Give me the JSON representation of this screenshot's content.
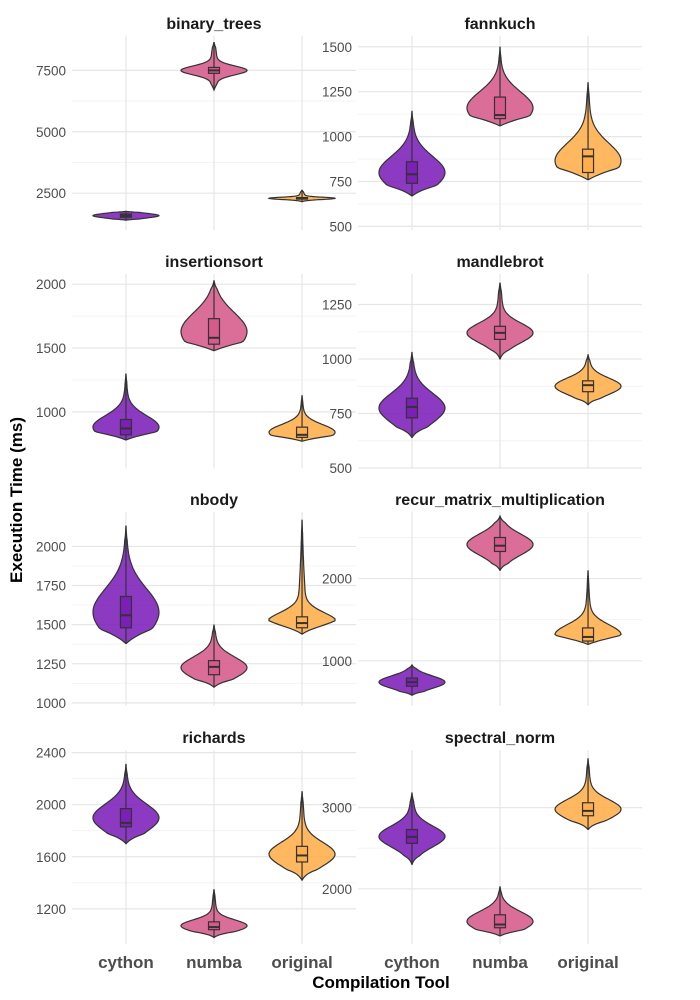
{
  "chart_data": {
    "type": "violin",
    "xlabel": "Compilation Tool",
    "ylabel": "Execution Time (ms)",
    "categories": [
      "cython",
      "numba",
      "original"
    ],
    "colors": {
      "cython": "#7b1fb8",
      "numba": "#d65a8a",
      "original": "#ffae4a"
    },
    "panels": [
      {
        "title": "binary_trees",
        "yticks": [
          2500,
          5000,
          7500
        ],
        "yminor": [
          3750,
          6250
        ],
        "ylim": [
          1000,
          8900
        ],
        "groups": [
          {
            "category": "cython",
            "min": 1400,
            "q1": 1520,
            "median": 1580,
            "q3": 1650,
            "max": 1760
          },
          {
            "category": "numba",
            "min": 6700,
            "q1": 7380,
            "median": 7500,
            "q3": 7620,
            "max": 8650
          },
          {
            "category": "original",
            "min": 2150,
            "q1": 2260,
            "median": 2290,
            "q3": 2320,
            "max": 2620
          }
        ]
      },
      {
        "title": "fannkuch",
        "yticks": [
          500,
          750,
          1000,
          1250,
          1500
        ],
        "yminor": [
          625,
          875,
          1125,
          1375
        ],
        "ylim": [
          480,
          1560
        ],
        "groups": [
          {
            "category": "cython",
            "min": 670,
            "q1": 740,
            "median": 790,
            "q3": 860,
            "max": 1140
          },
          {
            "category": "numba",
            "min": 1060,
            "q1": 1100,
            "median": 1120,
            "q3": 1220,
            "max": 1500
          },
          {
            "category": "original",
            "min": 760,
            "q1": 800,
            "median": 890,
            "q3": 930,
            "max": 1300
          }
        ]
      },
      {
        "title": "insertionsort",
        "yticks": [
          1000,
          1500,
          2000
        ],
        "yminor": [
          1250,
          1750
        ],
        "ylim": [
          560,
          2080
        ],
        "groups": [
          {
            "category": "cython",
            "min": 780,
            "q1": 820,
            "median": 870,
            "q3": 940,
            "max": 1300
          },
          {
            "category": "numba",
            "min": 1480,
            "q1": 1530,
            "median": 1580,
            "q3": 1730,
            "max": 2030
          },
          {
            "category": "original",
            "min": 770,
            "q1": 800,
            "median": 820,
            "q3": 880,
            "max": 1130
          }
        ]
      },
      {
        "title": "mandlebrot",
        "yticks": [
          500,
          750,
          1000,
          1250
        ],
        "yminor": [
          625,
          875,
          1125
        ],
        "ylim": [
          500,
          1390
        ],
        "groups": [
          {
            "category": "cython",
            "min": 640,
            "q1": 730,
            "median": 780,
            "q3": 820,
            "max": 1030
          },
          {
            "category": "numba",
            "min": 1000,
            "q1": 1090,
            "median": 1120,
            "q3": 1150,
            "max": 1350
          },
          {
            "category": "original",
            "min": 790,
            "q1": 850,
            "median": 880,
            "q3": 900,
            "max": 1020
          }
        ]
      },
      {
        "title": "nbody",
        "yticks": [
          1000,
          1250,
          1500,
          1750,
          2000
        ],
        "yminor": [
          1125,
          1375,
          1625,
          1875
        ],
        "ylim": [
          980,
          2220
        ],
        "groups": [
          {
            "category": "cython",
            "min": 1380,
            "q1": 1480,
            "median": 1560,
            "q3": 1680,
            "max": 2130
          },
          {
            "category": "numba",
            "min": 1100,
            "q1": 1180,
            "median": 1230,
            "q3": 1270,
            "max": 1500
          },
          {
            "category": "original",
            "min": 1440,
            "q1": 1480,
            "median": 1510,
            "q3": 1550,
            "max": 2170
          }
        ]
      },
      {
        "title": "recur_matrix_multiplication",
        "yticks": [
          1000,
          2000
        ],
        "yminor": [
          1500,
          2500
        ],
        "ylim": [
          450,
          2810
        ],
        "groups": [
          {
            "category": "cython",
            "min": 580,
            "q1": 690,
            "median": 740,
            "q3": 790,
            "max": 950
          },
          {
            "category": "numba",
            "min": 2100,
            "q1": 2330,
            "median": 2400,
            "q3": 2500,
            "max": 2760
          },
          {
            "category": "original",
            "min": 1200,
            "q1": 1240,
            "median": 1290,
            "q3": 1400,
            "max": 2100
          }
        ]
      },
      {
        "title": "richards",
        "yticks": [
          1200,
          1600,
          2000,
          2400
        ],
        "yminor": [
          1400,
          1800,
          2200
        ],
        "ylim": [
          930,
          2420
        ],
        "groups": [
          {
            "category": "cython",
            "min": 1700,
            "q1": 1830,
            "median": 1860,
            "q3": 1970,
            "max": 2310
          },
          {
            "category": "numba",
            "min": 980,
            "q1": 1040,
            "median": 1060,
            "q3": 1100,
            "max": 1350
          },
          {
            "category": "original",
            "min": 1420,
            "q1": 1560,
            "median": 1610,
            "q3": 1680,
            "max": 2100
          }
        ]
      },
      {
        "title": "spectral_norm",
        "yticks": [
          2000,
          3000
        ],
        "yminor": [
          2500
        ],
        "ylim": [
          1320,
          3710
        ],
        "groups": [
          {
            "category": "cython",
            "min": 2300,
            "q1": 2560,
            "median": 2640,
            "q3": 2730,
            "max": 3180
          },
          {
            "category": "numba",
            "min": 1420,
            "q1": 1520,
            "median": 1560,
            "q3": 1680,
            "max": 2030
          },
          {
            "category": "original",
            "min": 2730,
            "q1": 2900,
            "median": 2960,
            "q3": 3060,
            "max": 3600
          }
        ]
      }
    ]
  }
}
